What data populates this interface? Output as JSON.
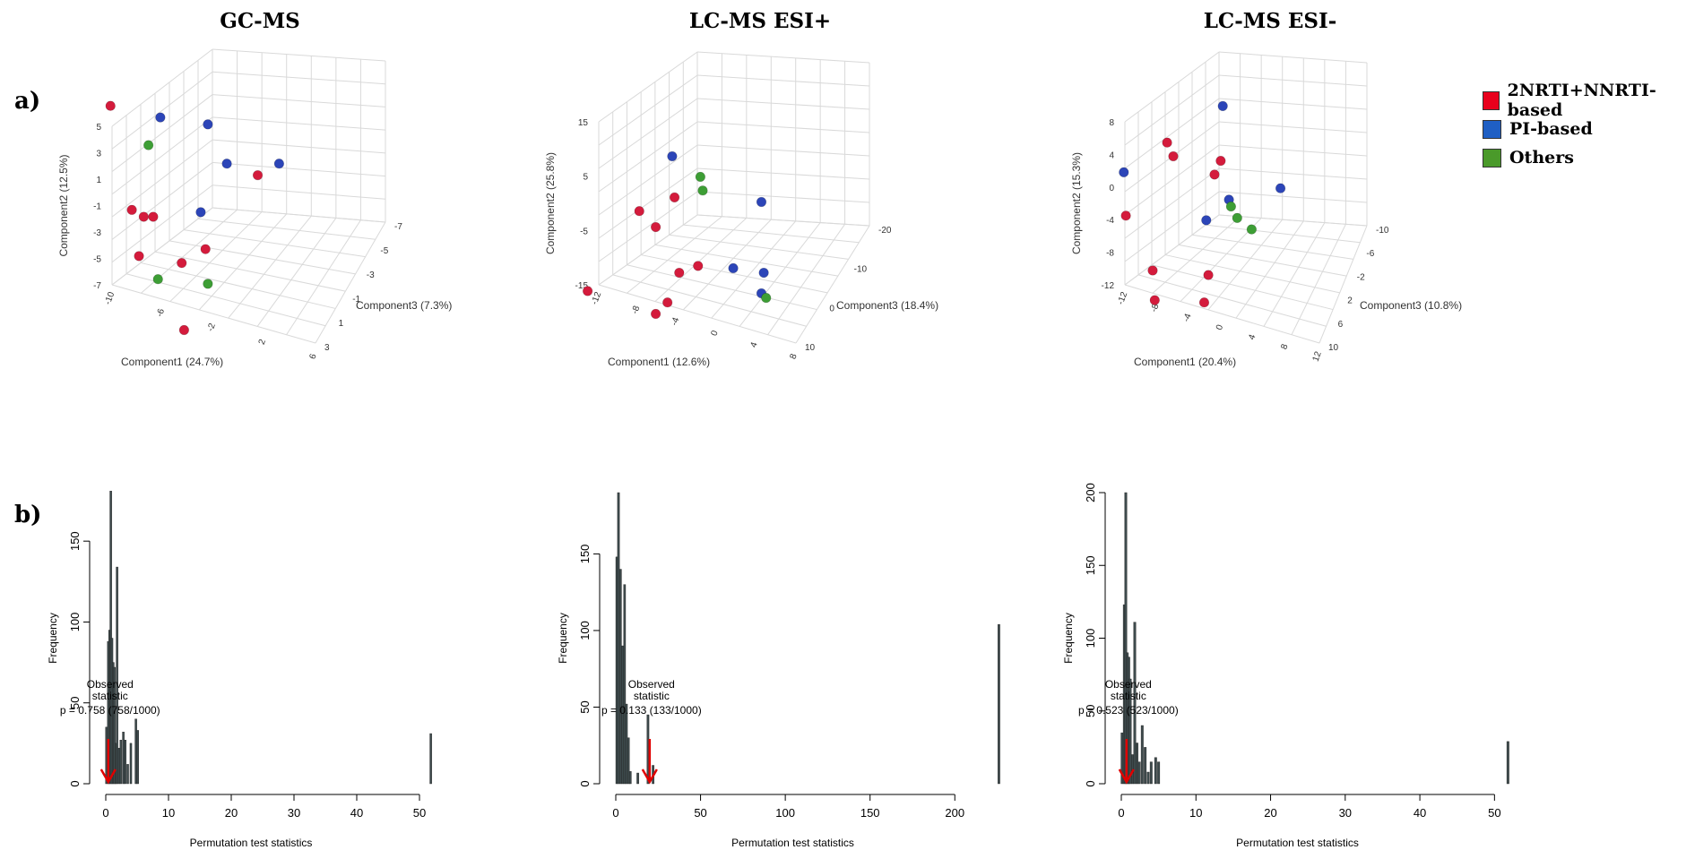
{
  "titles": [
    "GC-MS",
    "LC-MS ESI+",
    "LC-MS ESI-"
  ],
  "panel_labels": {
    "a": "a)",
    "b": "b)"
  },
  "legend": [
    {
      "label": "2NRTI+NNRTI-based",
      "color": "#e8001c"
    },
    {
      "label": "PI-based",
      "color": "#1f5fc4"
    },
    {
      "label": "Others",
      "color": "#4a9a2a"
    }
  ],
  "colors": {
    "red": "#d41b3c",
    "blue": "#2c45b8",
    "green": "#3d9e35",
    "bar": "#3d4a4c",
    "arrow": "#e00000",
    "grid": "#d9d9d9"
  },
  "chart_data": [
    {
      "type": "scatter",
      "title": "GC-MS",
      "xlabel": "Component1 (24.7%)",
      "ylabel": "Component2 (12.5%)",
      "zlabel": "Component3 (7.3%)",
      "yticks": [
        "5",
        "3",
        "1",
        "-1",
        "-3",
        "-5",
        "-7"
      ],
      "xticks": [
        "-10",
        "-6",
        "-2",
        "2",
        "6"
      ],
      "zticks": [
        "-7",
        "-5",
        "-3",
        "-1",
        "1",
        "3"
      ],
      "points": [
        {
          "group": "red",
          "u": 0.05,
          "v": 0.09
        },
        {
          "group": "blue",
          "u": 0.26,
          "v": 0.14
        },
        {
          "group": "blue",
          "u": 0.46,
          "v": 0.17
        },
        {
          "group": "green",
          "u": 0.21,
          "v": 0.26
        },
        {
          "group": "blue",
          "u": 0.54,
          "v": 0.34
        },
        {
          "group": "blue",
          "u": 0.76,
          "v": 0.34
        },
        {
          "group": "red",
          "u": 0.67,
          "v": 0.39
        },
        {
          "group": "red",
          "u": 0.14,
          "v": 0.54
        },
        {
          "group": "red",
          "u": 0.19,
          "v": 0.57
        },
        {
          "group": "red",
          "u": 0.23,
          "v": 0.57
        },
        {
          "group": "blue",
          "u": 0.43,
          "v": 0.55
        },
        {
          "group": "red",
          "u": 0.45,
          "v": 0.71
        },
        {
          "group": "red",
          "u": 0.17,
          "v": 0.74
        },
        {
          "group": "red",
          "u": 0.35,
          "v": 0.77
        },
        {
          "group": "green",
          "u": 0.25,
          "v": 0.84
        },
        {
          "group": "green",
          "u": 0.46,
          "v": 0.86
        },
        {
          "group": "red",
          "u": 0.36,
          "v": 1.06
        }
      ]
    },
    {
      "type": "scatter",
      "title": "LC-MS ESI+",
      "xlabel": "Component1 (12.6%)",
      "ylabel": "Component2 (25.8%)",
      "zlabel": "Component3 (18.4%)",
      "yticks": [
        "15",
        "5",
        "-5",
        "-15"
      ],
      "xticks": [
        "-12",
        "-8",
        "-4",
        "0",
        "4",
        "8"
      ],
      "zticks": [
        "-20",
        "-10",
        "0",
        "10"
      ],
      "points": [
        {
          "group": "blue",
          "u": 0.37,
          "v": 0.3
        },
        {
          "group": "green",
          "u": 0.49,
          "v": 0.39
        },
        {
          "group": "green",
          "u": 0.5,
          "v": 0.45
        },
        {
          "group": "red",
          "u": 0.38,
          "v": 0.48
        },
        {
          "group": "blue",
          "u": 0.75,
          "v": 0.5
        },
        {
          "group": "red",
          "u": 0.23,
          "v": 0.54
        },
        {
          "group": "red",
          "u": 0.3,
          "v": 0.61
        },
        {
          "group": "red",
          "u": 0.48,
          "v": 0.78
        },
        {
          "group": "red",
          "u": 0.4,
          "v": 0.81
        },
        {
          "group": "blue",
          "u": 0.63,
          "v": 0.79
        },
        {
          "group": "blue",
          "u": 0.76,
          "v": 0.81
        },
        {
          "group": "red",
          "u": 0.01,
          "v": 0.89
        },
        {
          "group": "blue",
          "u": 0.75,
          "v": 0.9
        },
        {
          "group": "green",
          "u": 0.77,
          "v": 0.92
        },
        {
          "group": "red",
          "u": 0.35,
          "v": 0.94
        },
        {
          "group": "red",
          "u": 0.3,
          "v": 0.99
        }
      ]
    },
    {
      "type": "scatter",
      "title": "LC-MS ESI-",
      "xlabel": "Component1 (20.4%)",
      "ylabel": "Component2 (15.3%)",
      "zlabel": "Component3 (10.8%)",
      "yticks": [
        "8",
        "4",
        "0",
        "-4",
        "-8",
        "-12"
      ],
      "xticks": [
        "-12",
        "-8",
        "-4",
        "0",
        "4",
        "8",
        "12"
      ],
      "zticks": [
        "-10",
        "-6",
        "-2",
        "2",
        "6",
        "10"
      ],
      "points": [
        {
          "group": "blue",
          "u": 0.54,
          "v": 0.08
        },
        {
          "group": "red",
          "u": 0.27,
          "v": 0.24
        },
        {
          "group": "red",
          "u": 0.3,
          "v": 0.3
        },
        {
          "group": "red",
          "u": 0.53,
          "v": 0.32
        },
        {
          "group": "blue",
          "u": 0.06,
          "v": 0.37
        },
        {
          "group": "red",
          "u": 0.5,
          "v": 0.38
        },
        {
          "group": "blue",
          "u": 0.82,
          "v": 0.44
        },
        {
          "group": "blue",
          "u": 0.57,
          "v": 0.49
        },
        {
          "group": "green",
          "u": 0.58,
          "v": 0.52
        },
        {
          "group": "red",
          "u": 0.07,
          "v": 0.56
        },
        {
          "group": "blue",
          "u": 0.46,
          "v": 0.58
        },
        {
          "group": "green",
          "u": 0.61,
          "v": 0.57
        },
        {
          "group": "green",
          "u": 0.68,
          "v": 0.62
        },
        {
          "group": "red",
          "u": 0.2,
          "v": 0.8
        },
        {
          "group": "red",
          "u": 0.47,
          "v": 0.82
        },
        {
          "group": "red",
          "u": 0.21,
          "v": 0.93
        },
        {
          "group": "red",
          "u": 0.45,
          "v": 0.94
        }
      ]
    },
    {
      "type": "bar",
      "xlabel": "Permutation test statistics",
      "ylabel": "Frequency",
      "xlim": [
        0,
        52
      ],
      "ylim": [
        0,
        180
      ],
      "xticks": [
        0,
        10,
        20,
        30,
        40,
        50
      ],
      "yticks": [
        0,
        50,
        100,
        150
      ],
      "bar_width": 0.3,
      "bars": [
        [
          0.1,
          35
        ],
        [
          0.4,
          88
        ],
        [
          0.6,
          95
        ],
        [
          0.8,
          181
        ],
        [
          1.0,
          90
        ],
        [
          1.2,
          75
        ],
        [
          1.4,
          72
        ],
        [
          1.6,
          25
        ],
        [
          1.8,
          134
        ],
        [
          2.1,
          22
        ],
        [
          2.4,
          27
        ],
        [
          2.8,
          32
        ],
        [
          3.1,
          27
        ],
        [
          3.5,
          12
        ],
        [
          4.0,
          25
        ],
        [
          4.8,
          40
        ],
        [
          5.1,
          33
        ],
        [
          51.8,
          31
        ]
      ],
      "observed": 0.4,
      "annotation": [
        "Observed",
        "statistic",
        "p = 0.758 (758/1000)"
      ]
    },
    {
      "type": "bar",
      "xlabel": "Permutation test statistics",
      "ylabel": "Frequency",
      "xlim": [
        0,
        230
      ],
      "ylim": [
        0,
        190
      ],
      "xticks": [
        0,
        50,
        100,
        150,
        200
      ],
      "yticks": [
        0,
        50,
        100,
        150
      ],
      "bar_width": 1.2,
      "bars": [
        [
          0.6,
          148
        ],
        [
          1.6,
          190
        ],
        [
          2.8,
          140
        ],
        [
          4.0,
          90
        ],
        [
          5.2,
          130
        ],
        [
          6.3,
          52
        ],
        [
          7.5,
          30
        ],
        [
          8.6,
          8
        ],
        [
          13,
          7
        ],
        [
          19,
          45
        ],
        [
          22,
          12
        ],
        [
          226,
          104
        ]
      ],
      "observed": 20,
      "annotation": [
        "Observed",
        "statistic",
        "p = 0.133 (133/1000)"
      ]
    },
    {
      "type": "bar",
      "xlabel": "Permutation test statistics",
      "ylabel": "Frequency",
      "xlim": [
        0,
        52
      ],
      "ylim": [
        0,
        200
      ],
      "xticks": [
        0,
        10,
        20,
        30,
        40,
        50
      ],
      "yticks": [
        0,
        50,
        100,
        150,
        200
      ],
      "bar_width": 0.3,
      "bars": [
        [
          0.1,
          35
        ],
        [
          0.4,
          123
        ],
        [
          0.6,
          200
        ],
        [
          0.8,
          90
        ],
        [
          1.0,
          87
        ],
        [
          1.2,
          72
        ],
        [
          1.5,
          20
        ],
        [
          1.8,
          111
        ],
        [
          2.1,
          28
        ],
        [
          2.4,
          15
        ],
        [
          2.8,
          40
        ],
        [
          3.2,
          25
        ],
        [
          3.6,
          8
        ],
        [
          4.0,
          15
        ],
        [
          4.6,
          18
        ],
        [
          5.0,
          15
        ],
        [
          51.8,
          29
        ]
      ],
      "observed": 0.7,
      "annotation": [
        "Observed",
        "statistic",
        "p = 0.523 (523/1000)"
      ]
    }
  ]
}
